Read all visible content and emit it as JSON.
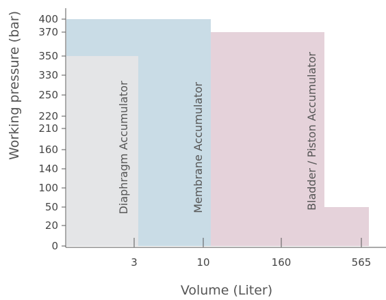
{
  "chart_data": {
    "type": "area",
    "title": "",
    "xlabel": "Volume (Liter)",
    "ylabel": "Working pressure (bar)",
    "x_ticks": [
      "3",
      "10",
      "160",
      "565"
    ],
    "y_ticks": [
      "0",
      "20",
      "50",
      "100",
      "140",
      "160",
      "210",
      "220",
      "250",
      "330",
      "350",
      "370",
      "400"
    ],
    "series": [
      {
        "name": "Diaphragm Accumulator",
        "max_pressure_bar": 350,
        "volume_range": [
          "",
          "3"
        ],
        "color": "#e4e5e7"
      },
      {
        "name": "Membrane Accumulator",
        "max_pressure_bar": 400,
        "volume_range": [
          "",
          "10"
        ],
        "color": "#c9dce6"
      },
      {
        "name": "Bladder / Piston Accumulator",
        "max_pressure_bar": 370,
        "reduced_pressure_bar": 50,
        "volume_range": [
          "10",
          "565"
        ],
        "color": "#e5d2da"
      }
    ],
    "grid": false
  }
}
